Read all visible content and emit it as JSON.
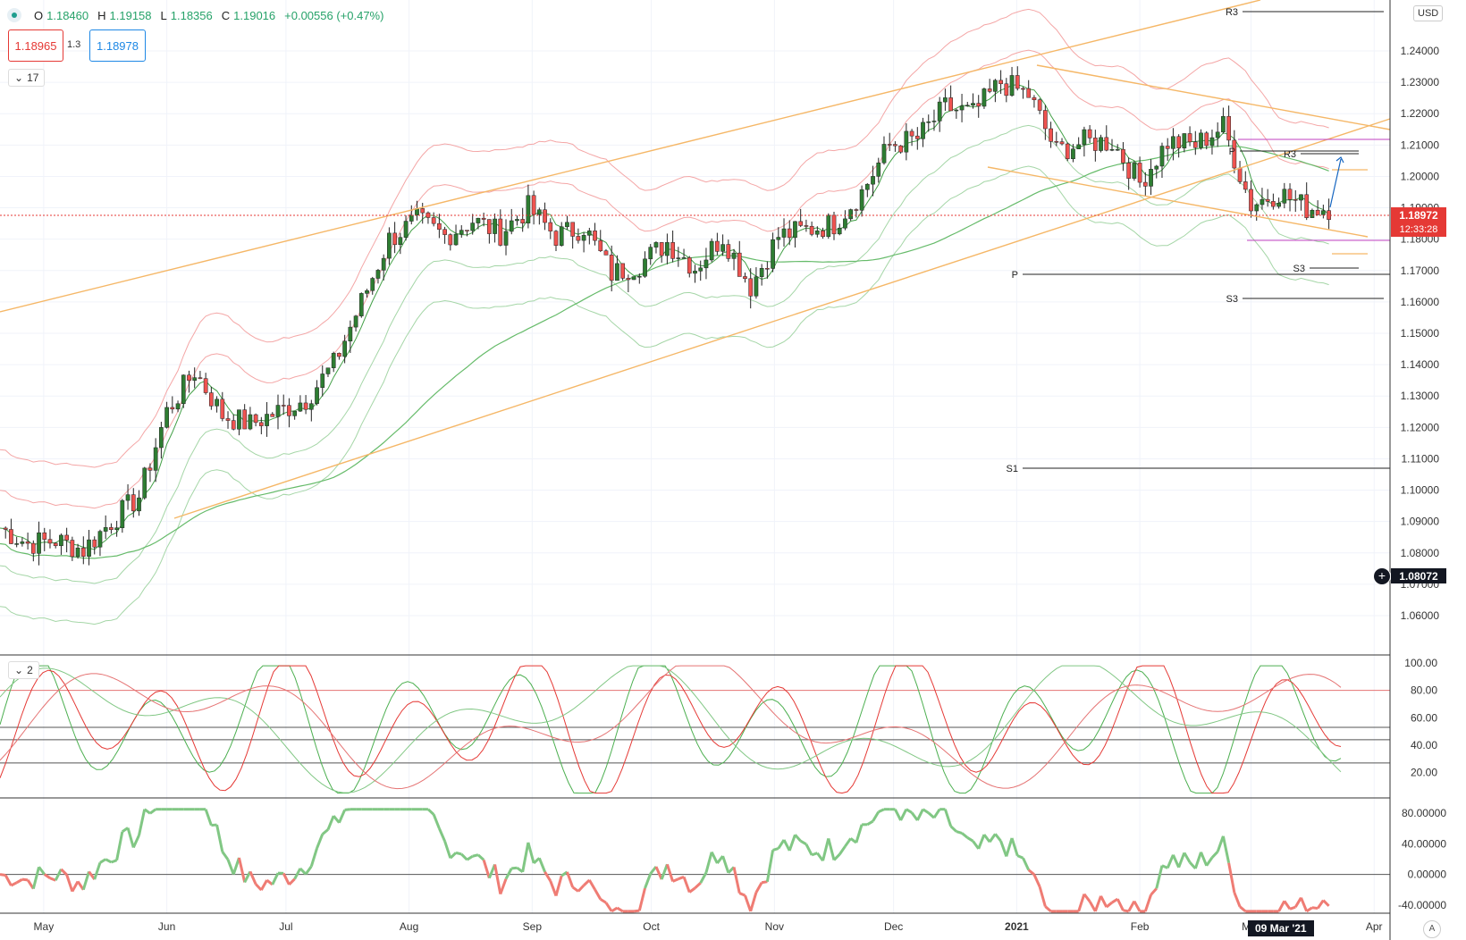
{
  "legend": {
    "o_label": "O",
    "o": "1.18460",
    "h_label": "H",
    "h": "1.19158",
    "l_label": "L",
    "l": "1.18356",
    "c_label": "C",
    "c": "1.19016",
    "change": "+0.00556 (+0.47%)"
  },
  "trade": {
    "sell": "1.18965",
    "spread": "1.3",
    "buy": "1.18978"
  },
  "main_tag": "17",
  "osc_tag": "2",
  "currency": "USD",
  "current_price": "1.18972",
  "countdown": "12:33:28",
  "crosshair_price": "1.08072",
  "crosshair_date": "09 Mar '21",
  "auto_label": "A",
  "colors": {
    "up": "#2e7d32",
    "down": "#ef5350",
    "channel": "#f5b767",
    "env_red": "#f4a6a6",
    "env_green": "#a5d6a7",
    "ma": "#66bb6a",
    "k_line": "#4caf50",
    "d_line": "#e53935",
    "osc_up": "#81c784",
    "osc_down": "#ef7c74"
  },
  "chart_data": [
    {
      "type": "candlestick",
      "x_axis": {
        "labels": [
          "May",
          "Jun",
          "Jul",
          "Aug",
          "Sep",
          "Oct",
          "Nov",
          "Dec",
          "2021",
          "Feb",
          "Mar",
          "Apr"
        ],
        "range": [
          "2020-04-20",
          "2021-04-05"
        ]
      },
      "y_axis": {
        "range": [
          1.055,
          1.255
        ],
        "ticks": [
          "1.24000",
          "1.23000",
          "1.22000",
          "1.21000",
          "1.20000",
          "1.19000",
          "1.18000",
          "1.17000",
          "1.16000",
          "1.15000",
          "1.14000",
          "1.13000",
          "1.12000",
          "1.11000",
          "1.10000",
          "1.09000",
          "1.08000",
          "1.07000",
          "1.06000"
        ]
      },
      "close_path": [
        [
          "2020-04-20",
          1.088
        ],
        [
          "2020-04-27",
          1.083
        ],
        [
          "2020-05-04",
          1.084
        ],
        [
          "2020-05-11",
          1.081
        ],
        [
          "2020-05-18",
          1.09
        ],
        [
          "2020-05-25",
          1.098
        ],
        [
          "2020-06-01",
          1.125
        ],
        [
          "2020-06-08",
          1.138
        ],
        [
          "2020-06-15",
          1.124
        ],
        [
          "2020-06-22",
          1.121
        ],
        [
          "2020-06-29",
          1.125
        ],
        [
          "2020-07-06",
          1.129
        ],
        [
          "2020-07-13",
          1.14
        ],
        [
          "2020-07-20",
          1.16
        ],
        [
          "2020-07-27",
          1.18
        ],
        [
          "2020-08-03",
          1.186
        ],
        [
          "2020-08-10",
          1.181
        ],
        [
          "2020-08-17",
          1.186
        ],
        [
          "2020-08-24",
          1.182
        ],
        [
          "2020-08-31",
          1.19
        ],
        [
          "2020-09-07",
          1.181
        ],
        [
          "2020-09-14",
          1.184
        ],
        [
          "2020-09-21",
          1.169
        ],
        [
          "2020-09-28",
          1.172
        ],
        [
          "2020-10-05",
          1.179
        ],
        [
          "2020-10-12",
          1.171
        ],
        [
          "2020-10-19",
          1.181
        ],
        [
          "2020-10-26",
          1.165
        ],
        [
          "2020-11-02",
          1.181
        ],
        [
          "2020-11-09",
          1.183
        ],
        [
          "2020-11-16",
          1.185
        ],
        [
          "2020-11-23",
          1.195
        ],
        [
          "2020-11-30",
          1.21
        ],
        [
          "2020-12-07",
          1.212
        ],
        [
          "2020-12-14",
          1.222
        ],
        [
          "2020-12-21",
          1.22
        ],
        [
          "2020-12-28",
          1.23
        ],
        [
          "2021-01-04",
          1.226
        ],
        [
          "2021-01-11",
          1.208
        ],
        [
          "2021-01-18",
          1.211
        ],
        [
          "2021-01-25",
          1.211
        ],
        [
          "2021-02-01",
          1.198
        ],
        [
          "2021-02-08",
          1.211
        ],
        [
          "2021-02-15",
          1.21
        ],
        [
          "2021-02-22",
          1.216
        ],
        [
          "2021-03-01",
          1.191
        ],
        [
          "2021-03-08",
          1.195
        ],
        [
          "2021-03-15",
          1.19
        ],
        [
          "2021-03-22",
          1.19
        ]
      ],
      "pivot_labels": [
        "R3",
        "R3",
        "P",
        "P",
        "S1",
        "S3",
        "S3"
      ]
    },
    {
      "type": "line",
      "name_hidden": true,
      "y_axis": {
        "range": [
          0,
          110
        ],
        "ticks": [
          "100.00",
          "80.00",
          "60.00",
          "40.00",
          "20.00"
        ]
      },
      "levels": [
        80,
        53,
        44,
        27
      ]
    },
    {
      "type": "line",
      "y_axis": {
        "range": [
          -55,
          95
        ],
        "ticks": [
          "80.00000",
          "40.00000",
          "0.00000",
          "-40.00000"
        ]
      },
      "zero_line": 0
    }
  ]
}
